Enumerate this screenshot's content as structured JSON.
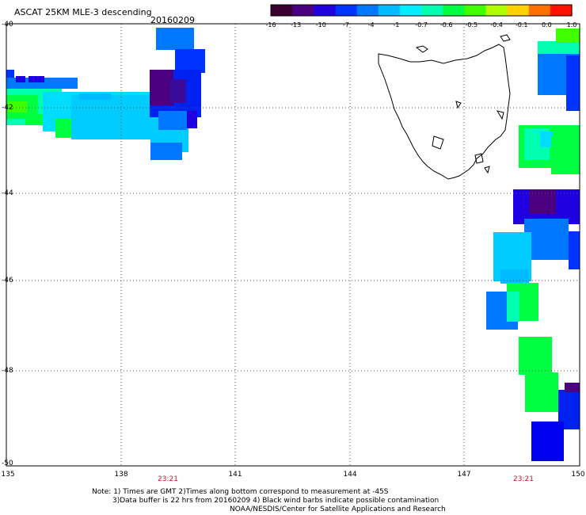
{
  "header": {
    "title": "ASCAT 25KM MLE-3 descending",
    "date": "20160209"
  },
  "colorbar": {
    "labels": [
      "-16",
      "-13",
      "-10",
      "-7",
      "-4",
      "-1",
      "-0.7",
      "-0.6",
      "-0.5",
      "-0.4",
      "-0.1",
      "0.0",
      "1.0"
    ],
    "colors": [
      "#3a0030",
      "#4b0082",
      "#2000e0",
      "#0033ff",
      "#0077ff",
      "#00bbff",
      "#00eeff",
      "#00ffb0",
      "#00ff40",
      "#40ff00",
      "#b0ff00",
      "#ffd000",
      "#ff7000",
      "#ff1000"
    ]
  },
  "axes": {
    "lat_labels": [
      "-40",
      "-42",
      "-44",
      "-46",
      "-48",
      "-50"
    ],
    "lon_labels": [
      "135",
      "138",
      "141",
      "144",
      "147",
      "150"
    ],
    "times": [
      "23:21",
      "23:21"
    ]
  },
  "notes": {
    "line1": "Note: 1) Times are GMT 2)Times along bottom correspond to measurement at -45S",
    "line2": "3)Data buffer is 22 hrs from 20160209 4) Black wind barbs indicate possible contamination",
    "line3": "NOAA/NESDIS/Center for Satellite Applications and Research"
  }
}
